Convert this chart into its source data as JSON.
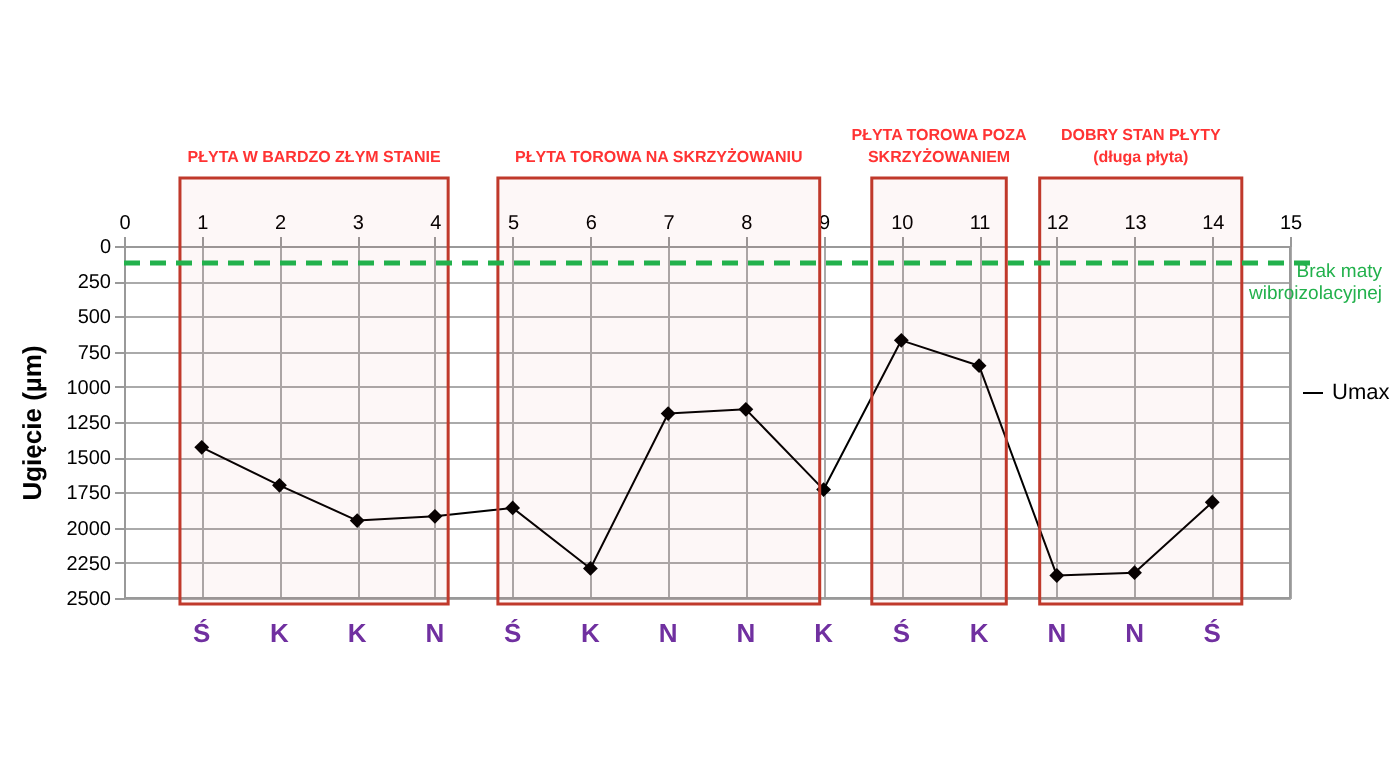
{
  "chart_data": {
    "type": "line",
    "ylabel": "Ugięcie (µm)",
    "x": [
      1,
      2,
      3,
      4,
      5,
      6,
      7,
      8,
      9,
      10,
      11,
      12,
      13,
      14
    ],
    "series": [
      {
        "name": "Umax",
        "color": "#000000",
        "values": [
          1430,
          1700,
          1950,
          1920,
          1860,
          2290,
          1190,
          1160,
          1730,
          670,
          850,
          2340,
          2320,
          1820
        ]
      }
    ],
    "xlim": [
      0,
      15
    ],
    "xticks": [
      0,
      1,
      2,
      3,
      4,
      5,
      6,
      7,
      8,
      9,
      10,
      11,
      12,
      13,
      14,
      15
    ],
    "ylim": [
      2500,
      0
    ],
    "yticks": [
      0,
      250,
      500,
      750,
      1000,
      1250,
      1500,
      1750,
      2000,
      2250,
      2500
    ],
    "annotations": [
      "Ś",
      "K",
      "K",
      "N",
      "Ś",
      "K",
      "N",
      "N",
      "K",
      "Ś",
      "K",
      "N",
      "N",
      "Ś"
    ],
    "ref_lines": [
      {
        "axis": "y",
        "value": 120,
        "label": "Brak maty\nwibroizolacyjnej",
        "color": "#22b14c",
        "line_style": "dashed"
      }
    ],
    "bands": [
      {
        "axis": "x",
        "from": 0.72,
        "to": 4.17,
        "label": "PŁYTA W BARDZO ZŁYM STANIE",
        "color": "#c0392b"
      },
      {
        "axis": "x",
        "from": 4.81,
        "to": 8.95,
        "label": "PŁYTA TOROWA NA SKRZYŻOWANIU",
        "color": "#c0392b"
      },
      {
        "axis": "x",
        "from": 9.62,
        "to": 11.35,
        "label": "PŁYTA TOROWA POZA\nSKRZYŻOWANIEM",
        "color": "#c0392b"
      },
      {
        "axis": "x",
        "from": 11.78,
        "to": 14.38,
        "label": "DOBRY STAN PŁYTY\n(długa płyta)",
        "color": "#c0392b"
      }
    ],
    "grid": true,
    "legend": "right",
    "marker": "diamond",
    "line_style": "solid"
  }
}
